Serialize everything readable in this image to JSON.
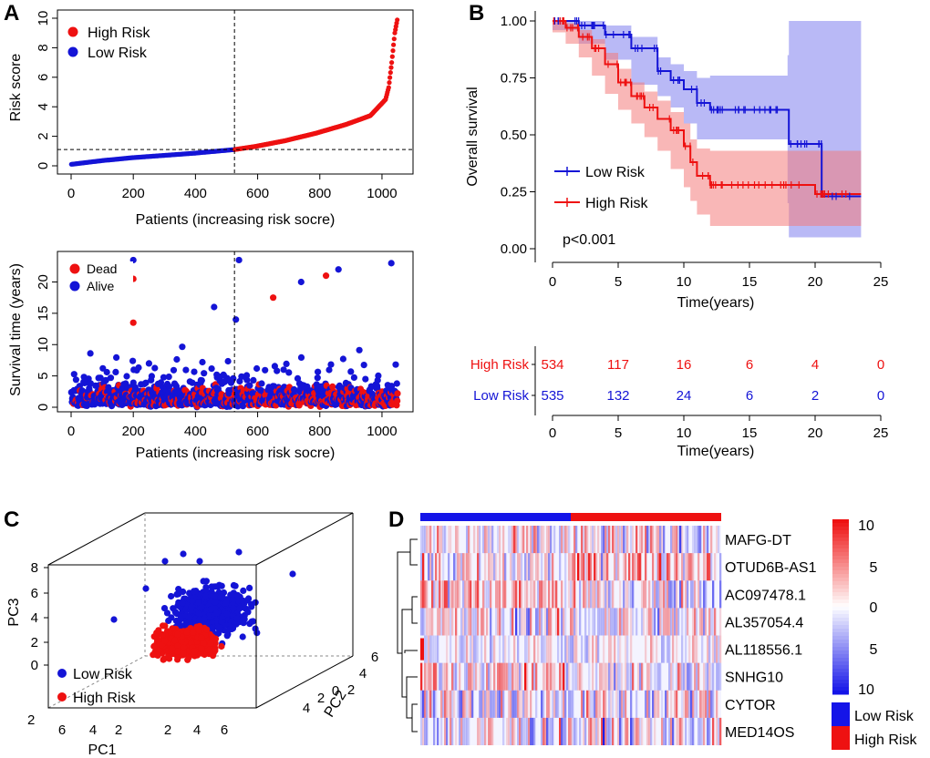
{
  "chart_data": [
    {
      "panel": "A",
      "type": "scatter",
      "title": "",
      "xlabel": "Patients (increasing risk socre)",
      "ylabel": "Risk score",
      "xlim": [
        0,
        1069
      ],
      "ylim": [
        0,
        10
      ],
      "x_ticks": [
        0,
        200,
        400,
        600,
        800,
        1000
      ],
      "y_ticks": [
        0,
        2,
        4,
        6,
        8,
        10
      ],
      "cutoff_index": 535,
      "cutoff_score": 1.1,
      "legend": [
        {
          "name": "High Risk",
          "color": "#ee1111"
        },
        {
          "name": "Low Risk",
          "color": "#1414d6"
        }
      ],
      "legend_position": "top-left",
      "series": [
        {
          "name": "Low Risk",
          "x_range": [
            1,
            535
          ],
          "y_curve": [
            [
              0,
              0.1
            ],
            [
              100,
              0.35
            ],
            [
              200,
              0.55
            ],
            [
              300,
              0.7
            ],
            [
              400,
              0.85
            ],
            [
              535,
              1.1
            ]
          ]
        },
        {
          "name": "High Risk",
          "x_range": [
            536,
            1069
          ],
          "y_curve": [
            [
              535,
              1.1
            ],
            [
              600,
              1.3
            ],
            [
              700,
              1.7
            ],
            [
              800,
              2.2
            ],
            [
              900,
              2.8
            ],
            [
              980,
              3.4
            ],
            [
              1030,
              4.5
            ],
            [
              1040,
              5.3
            ],
            [
              1050,
              7
            ],
            [
              1060,
              9
            ],
            [
              1069,
              10
            ]
          ]
        }
      ]
    },
    {
      "panel": "A",
      "type": "scatter",
      "title": "",
      "xlabel": "Patients (increasing risk socre)",
      "ylabel": "Survival time (years)",
      "xlim": [
        0,
        1069
      ],
      "ylim": [
        0,
        24
      ],
      "x_ticks": [
        0,
        200,
        400,
        600,
        800,
        1000
      ],
      "y_ticks": [
        0,
        5,
        10,
        15,
        20
      ],
      "cutoff_index": 535,
      "legend": [
        {
          "name": "Dead",
          "color": "#ee1111"
        },
        {
          "name": "Alive",
          "color": "#1414d6"
        }
      ],
      "legend_position": "top-left",
      "highlighted_points": [
        {
          "x": 200,
          "y": 23.5,
          "status": "Alive"
        },
        {
          "x": 540,
          "y": 23.5,
          "status": "Alive"
        },
        {
          "x": 1030,
          "y": 23,
          "status": "Alive"
        },
        {
          "x": 860,
          "y": 22,
          "status": "Alive"
        },
        {
          "x": 820,
          "y": 21,
          "status": "Dead"
        },
        {
          "x": 200,
          "y": 20.5,
          "status": "Dead"
        },
        {
          "x": 740,
          "y": 20,
          "status": "Alive"
        },
        {
          "x": 20,
          "y": 18,
          "status": "Dead"
        },
        {
          "x": 60,
          "y": 18.5,
          "status": "Alive"
        },
        {
          "x": 650,
          "y": 17.5,
          "status": "Dead"
        },
        {
          "x": 460,
          "y": 16,
          "status": "Alive"
        },
        {
          "x": 200,
          "y": 13.5,
          "status": "Dead"
        },
        {
          "x": 530,
          "y": 14,
          "status": "Alive"
        }
      ]
    },
    {
      "panel": "B",
      "type": "line",
      "title": "",
      "xlabel": "Time(years)",
      "ylabel": "Overall survival",
      "xlim": [
        0,
        25
      ],
      "ylim": [
        0,
        1
      ],
      "x_ticks": [
        0,
        5,
        10,
        15,
        20,
        25
      ],
      "y_ticks": [
        "0.00",
        "0.25",
        "0.50",
        "0.75",
        "1.00"
      ],
      "pvalue": "p<0.001",
      "legend_position": "bottom-left",
      "series": [
        {
          "name": "Low Risk",
          "color": "#1414d6",
          "x": [
            0,
            2,
            4,
            6,
            8,
            9,
            10,
            11,
            12,
            17.9,
            18,
            20.5,
            23.5
          ],
          "y": [
            1.0,
            0.98,
            0.94,
            0.88,
            0.78,
            0.74,
            0.7,
            0.64,
            0.61,
            0.61,
            0.46,
            0.23,
            0.23
          ],
          "ci_low": [
            1.0,
            0.96,
            0.9,
            0.83,
            0.72,
            0.67,
            0.62,
            0.55,
            0.48,
            0.48,
            0.2,
            0.05,
            0.05
          ],
          "ci_high": [
            1.0,
            1.0,
            0.98,
            0.93,
            0.84,
            0.81,
            0.78,
            0.75,
            0.76,
            0.85,
            1.0,
            1.0,
            1.0
          ]
        },
        {
          "name": "High Risk",
          "color": "#ee1111",
          "x": [
            0,
            1,
            2,
            3,
            4,
            5,
            6,
            7,
            8,
            9,
            10,
            10.5,
            11,
            12,
            20,
            23.5
          ],
          "y": [
            1.0,
            0.97,
            0.93,
            0.88,
            0.81,
            0.73,
            0.67,
            0.62,
            0.57,
            0.52,
            0.45,
            0.38,
            0.32,
            0.28,
            0.24,
            0.24
          ],
          "ci_low": [
            1.0,
            0.95,
            0.9,
            0.84,
            0.76,
            0.68,
            0.61,
            0.55,
            0.49,
            0.43,
            0.35,
            0.27,
            0.21,
            0.15,
            0.1,
            0.1
          ],
          "ci_high": [
            1.0,
            0.99,
            0.96,
            0.92,
            0.86,
            0.79,
            0.73,
            0.69,
            0.65,
            0.6,
            0.55,
            0.48,
            0.44,
            0.43,
            0.43,
            0.43
          ]
        }
      ]
    },
    {
      "panel": "B",
      "type": "table",
      "title": "Number at risk",
      "xlabel": "Time(years)",
      "x_ticks": [
        0,
        5,
        10,
        15,
        20,
        25
      ],
      "rows": [
        {
          "name": "High Risk",
          "color": "#ee1111",
          "values": [
            "534",
            "117",
            "16",
            "6",
            "4",
            "0"
          ]
        },
        {
          "name": "Low Risk",
          "color": "#1414d6",
          "values": [
            "535",
            "132",
            "24",
            "6",
            "2",
            "0"
          ]
        }
      ]
    },
    {
      "panel": "C",
      "type": "scatter",
      "title": "",
      "dimensions": 3,
      "axis_labels": {
        "x": "PC1",
        "y": "PC2",
        "z": "PC3"
      },
      "z_ticks": [
        "0",
        "2",
        "4",
        "6",
        "8"
      ],
      "z_tick_extra": "2",
      "y_ticks": [
        "6",
        "4",
        "2",
        "0",
        "2",
        "4",
        "6"
      ],
      "x_ticks": [
        "6",
        "4",
        "2",
        "0",
        "2",
        "4",
        "6"
      ],
      "legend": [
        {
          "name": "Low Risk",
          "color": "#1414d6"
        },
        {
          "name": "High Risk",
          "color": "#ee1111"
        }
      ],
      "legend_position": "bottom-left"
    },
    {
      "panel": "D",
      "type": "heatmap",
      "title": "",
      "genes": [
        "MAFG-DT",
        "OTUD6B-AS1",
        "AC097478.1",
        "AL357054.4",
        "AL118556.1",
        "SNHG10",
        "CYTOR",
        "MED14OS"
      ],
      "groups": [
        {
          "name": "Low Risk",
          "color": "#1414e8"
        },
        {
          "name": "High Risk",
          "color": "#ee1111"
        }
      ],
      "colorbar": {
        "ticks": [
          "10",
          "5",
          "0",
          "5",
          "10"
        ],
        "range": [
          -10,
          10
        ],
        "low_color": "#1414e8",
        "mid_color": "#ffffff",
        "high_color": "#ee1111"
      }
    }
  ],
  "panels": {
    "a": "A",
    "b": "B",
    "c": "C",
    "d": "D"
  }
}
